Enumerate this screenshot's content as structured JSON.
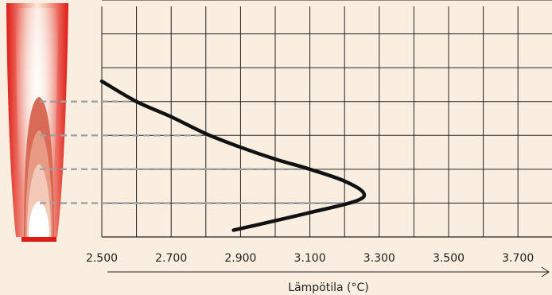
{
  "chart_data": {
    "type": "line",
    "xlabel": "Lämpötila (°C)",
    "ylabel": "",
    "xlim": [
      2500,
      3800
    ],
    "ylim": [
      0,
      7
    ],
    "x_ticks": [
      2500,
      2700,
      2900,
      3100,
      3300,
      3500,
      3700
    ],
    "x_tick_labels": [
      "2.500",
      "2.700",
      "2.900",
      "3.100",
      "3.300",
      "3.500",
      "3.700"
    ],
    "grid": true,
    "series": [
      {
        "values": [
          {
            "x": 2500,
            "y": 4.6
          },
          {
            "x": 2600,
            "y": 4.0
          },
          {
            "x": 2700,
            "y": 3.55
          },
          {
            "x": 2800,
            "y": 3.05
          },
          {
            "x": 2900,
            "y": 2.65
          },
          {
            "x": 3000,
            "y": 2.3
          },
          {
            "x": 3100,
            "y": 2.0
          },
          {
            "x": 3200,
            "y": 1.65
          },
          {
            "x": 3255,
            "y": 1.3
          },
          {
            "x": 3230,
            "y": 1.05
          },
          {
            "x": 3100,
            "y": 0.72
          },
          {
            "x": 3000,
            "y": 0.48
          },
          {
            "x": 2880,
            "y": 0.2
          }
        ]
      }
    ],
    "reference_levels": [
      4.0,
      3.0,
      2.0,
      1.0
    ]
  },
  "colors": {
    "background": "#f9eedf",
    "grid": "#222222",
    "curve": "#111111",
    "dash": "#a0a0a0",
    "flame_outer": "#e01a14",
    "flame_inner": "#d96a55",
    "flame_core": "#ffffff"
  },
  "icons": {
    "flame": "candle-flame-illustration",
    "arrow": "x-axis-arrow"
  }
}
